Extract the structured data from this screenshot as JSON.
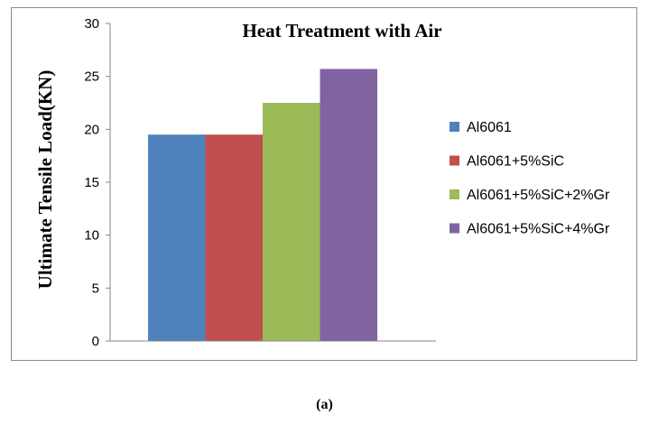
{
  "chart_data": {
    "type": "bar",
    "title": "Heat Treatment with Air",
    "xlabel": "",
    "ylabel": "Ultimate Tensile Load(KN)",
    "ylim": [
      0,
      30
    ],
    "yticks": [
      0,
      5,
      10,
      15,
      20,
      25,
      30
    ],
    "categories": [
      ""
    ],
    "series": [
      {
        "name": "Al6061",
        "values": [
          19.5
        ],
        "color": "#4f81bd"
      },
      {
        "name": "Al6061+5%SiC",
        "values": [
          19.5
        ],
        "color": "#c0504d"
      },
      {
        "name": "Al6061+5%SiC+2%Gr",
        "values": [
          22.5
        ],
        "color": "#9bbb59"
      },
      {
        "name": "Al6061+5%SiC+4%Gr",
        "values": [
          25.7
        ],
        "color": "#8064a2"
      }
    ],
    "grid": false,
    "legend_position": "right"
  },
  "caption": "(a)"
}
